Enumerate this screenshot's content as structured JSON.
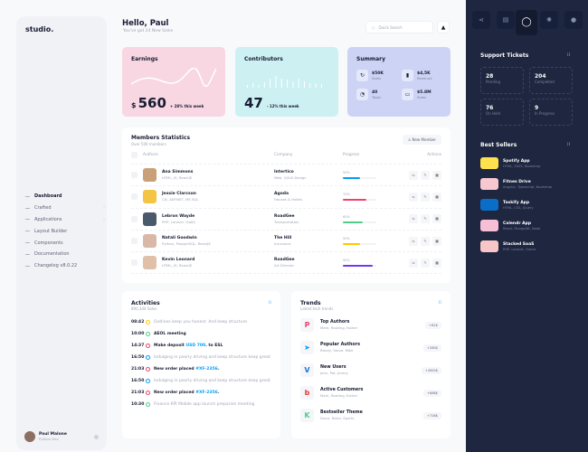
{
  "sidebar": {
    "logo": "studio.",
    "items": [
      {
        "label": "Dashboard",
        "active": true
      },
      {
        "label": "Crafted",
        "chevron": true
      },
      {
        "label": "Applications",
        "chevron": true
      },
      {
        "label": "Layout Builder"
      },
      {
        "label": "Components"
      },
      {
        "label": "Documentation"
      },
      {
        "label": "Changelog v8.0.22"
      }
    ],
    "user": {
      "name": "Paul Malone",
      "role": "Python Dev"
    }
  },
  "header": {
    "title": "Hello, Paul",
    "subtitle": "You've got 24 New Sales",
    "search_placeholder": "Quick Search"
  },
  "earnings": {
    "title": "Earnings",
    "currency": "$",
    "value": "560",
    "change": "+ 28% this week",
    "color": "#f8d7e2"
  },
  "contributors": {
    "title": "Contributors",
    "value": "47",
    "change": "- 12% this week",
    "color": "#cdf1f3"
  },
  "summary": {
    "title": "Summary",
    "color": "#cdd3f5",
    "items": [
      {
        "value": "$50K",
        "label": "Sales",
        "icon": "refresh-icon"
      },
      {
        "value": "$4,5K",
        "label": "Revenue",
        "icon": "chart-icon"
      },
      {
        "value": "40",
        "label": "Tasks",
        "icon": "pie-icon"
      },
      {
        "value": "$5.8M",
        "label": "Sales",
        "icon": "card-icon"
      }
    ]
  },
  "members": {
    "title": "Members Statistics",
    "subtitle": "Over 500 members",
    "new_button": "New Member",
    "columns": [
      "Authors",
      "Company",
      "Progress",
      "Actions"
    ],
    "rows": [
      {
        "name": "Ana Simmons",
        "skills": "HTML, JS, ReactJS",
        "company": "Intertico",
        "dept": "Web, UI/UX Design",
        "progress": 50,
        "progress_label": "50%",
        "color": "#009ef7",
        "photo": "#c9a07a"
      },
      {
        "name": "Jessie Clarcson",
        "skills": "C#, ASP.NET, MS SQL",
        "company": "Agoda",
        "dept": "Houses & Hotels",
        "progress": 70,
        "progress_label": "70%",
        "color": "#f1416c",
        "photo": "#f4c542"
      },
      {
        "name": "Lebron Wayde",
        "skills": "PHP, Laravel, VueJS",
        "company": "RoadGee",
        "dept": "Transportation",
        "progress": 60,
        "progress_label": "60%",
        "color": "#50cd89",
        "photo": "#4a5a6a"
      },
      {
        "name": "Natali Goodwin",
        "skills": "Python, PostgreSQL, ReactJS",
        "company": "The Hill",
        "dept": "Insurance",
        "progress": 50,
        "progress_label": "50%",
        "color": "#ffc700",
        "photo": "#d9b8a8"
      },
      {
        "name": "Kevin Leonard",
        "skills": "HTML, JS, ReactJS",
        "company": "RoadGee",
        "dept": "Art Director",
        "progress": 90,
        "progress_label": "90%",
        "color": "#7239ea",
        "photo": "#e0c0a8"
      }
    ]
  },
  "activities": {
    "title": "Activities",
    "subtitle": "890,344 Sales",
    "items": [
      {
        "time": "08:42",
        "text": "Outlines keep you honest. And keep structure",
        "color": "#ffc700",
        "muted": true
      },
      {
        "time": "10:00",
        "text": "AEOL meeting",
        "color": "#50cd89",
        "muted": false
      },
      {
        "time": "14:37",
        "text": "Make deposit ",
        "link": "USD 700",
        "after": ". to ESL",
        "color": "#f1416c",
        "muted": false
      },
      {
        "time": "16:50",
        "text": "Indulging in poorly driving and keep structure keep great",
        "color": "#009ef7",
        "muted": true
      },
      {
        "time": "21:03",
        "text": "New order placed ",
        "link": "#XF-2356",
        "after": ".",
        "color": "#f1416c",
        "muted": false
      },
      {
        "time": "16:50",
        "text": "Indulging in poorly driving and keep structure keep great",
        "color": "#009ef7",
        "muted": true
      },
      {
        "time": "21:03",
        "text": "New order placed ",
        "link": "#XF-2356",
        "after": ".",
        "color": "#f1416c",
        "muted": false
      },
      {
        "time": "10:30",
        "text": "Finance KPI Mobile app launch preparion meeting",
        "color": "#50cd89",
        "muted": true
      }
    ]
  },
  "trends": {
    "title": "Trends",
    "subtitle": "Latest tech trends",
    "items": [
      {
        "title": "Top Authors",
        "sub": "Mark, Rowling, Esther",
        "badge": "+82$",
        "icon": "P",
        "color": "#f1416c"
      },
      {
        "title": "Popular Authors",
        "sub": "Randy, Steve, Mike",
        "badge": "+280$",
        "icon": "➤",
        "color": "#009ef7"
      },
      {
        "title": "New Users",
        "sub": "John, Pat, Jimmy",
        "badge": "+4500$",
        "icon": "V",
        "color": "#1a73e8"
      },
      {
        "title": "Active Customers",
        "sub": "Mark, Rowling, Esther",
        "badge": "+686$",
        "icon": "b",
        "color": "#e53935"
      },
      {
        "title": "Bestseller Theme",
        "sub": "Disco, Retro, Sports",
        "badge": "+726$",
        "icon": "K",
        "color": "#50cd89"
      }
    ]
  },
  "right": {
    "toolbar": [
      "share-icon",
      "layout-icon",
      "donut-icon",
      "gear-icon",
      "chat-icon"
    ],
    "tickets": {
      "title": "Support Tickets",
      "items": [
        {
          "value": "28",
          "label": "Pending"
        },
        {
          "value": "204",
          "label": "Completed"
        },
        {
          "value": "76",
          "label": "On Hold"
        },
        {
          "value": "9",
          "label": "In Progress"
        }
      ]
    },
    "sellers": {
      "title": "Best Sellers",
      "items": [
        {
          "name": "Spotify App",
          "tech": "HTML, SASS, Bootstrap",
          "color": "#ffe14d"
        },
        {
          "name": "Fitnes Drive",
          "tech": "Angular, Typescript, Bootstrap",
          "color": "#f8c8d0"
        },
        {
          "name": "Taskify App",
          "tech": "HTML, CSS, jQuery",
          "color": "#0a6ec8"
        },
        {
          "name": "Calendr App",
          "tech": "React, MongoDB, Node",
          "color": "#f6bfd6"
        },
        {
          "name": "Stacked SaaS",
          "tech": "PHP, Laravel, Oracle",
          "color": "#f8c6c6"
        }
      ]
    }
  }
}
